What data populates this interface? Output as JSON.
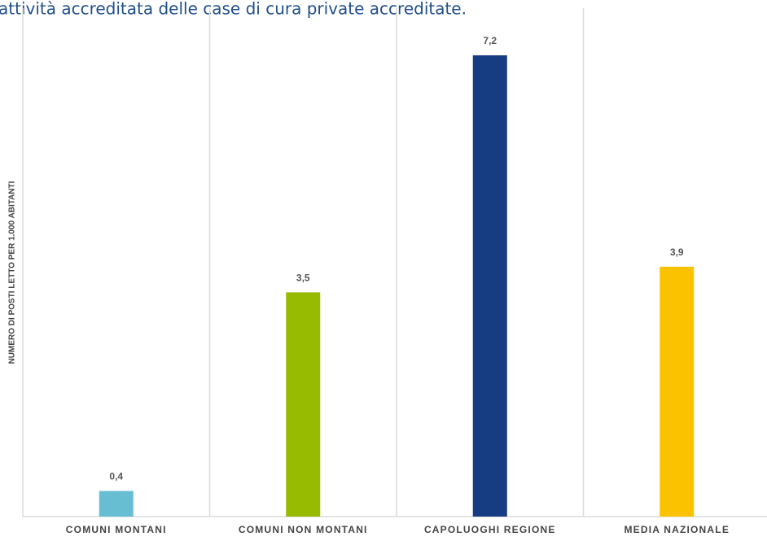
{
  "chart_data": {
    "type": "bar",
    "title": "attività accreditata delle case di cura private accreditate.",
    "y_label": "NUMERO DI POSTI LETTO PER 1.000 ABITANTI",
    "categories": [
      "COMUNI MONTANI",
      "COMUNI NON MONTANI",
      "CAPOLUOGHI REGIONE",
      "MEDIA NAZIONALE"
    ],
    "values": [
      0.4,
      3.5,
      7.2,
      3.9
    ],
    "value_labels": [
      "0,4",
      "3,5",
      "7,2",
      "3,9"
    ],
    "colors": [
      "#67bdd2",
      "#97bb00",
      "#163c82",
      "#fbc200"
    ],
    "ylim": [
      0,
      8
    ]
  }
}
